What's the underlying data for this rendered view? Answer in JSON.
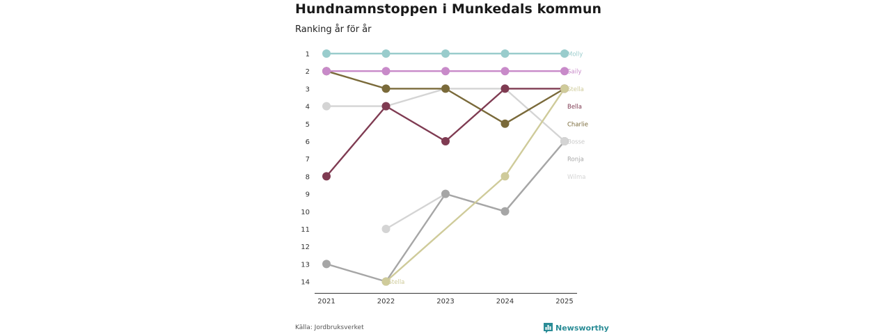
{
  "title": "Hundnamnstoppen i Munkedals kommun",
  "subtitle": "Ranking år för år",
  "footer": {
    "source": "Källa: Jordbruksverket",
    "brand": "Newsworthy"
  },
  "chart_data": {
    "type": "line",
    "subtype": "bump",
    "title": "Hundnamnstoppen i Munkedals kommun",
    "subtitle": "Ranking år för år",
    "x": [
      "2021",
      "2022",
      "2023",
      "2024",
      "2025"
    ],
    "y_ticks": [
      "1",
      "2",
      "3",
      "4",
      "5",
      "6",
      "7",
      "8",
      "9",
      "10",
      "11",
      "12",
      "13",
      "14"
    ],
    "ylim": [
      1,
      14
    ],
    "y_inverted": true,
    "series": [
      {
        "name": "Wilma",
        "color": "#d4d4d4",
        "values": [
          null,
          11,
          9,
          10,
          6
        ]
      },
      {
        "name": "Ronja",
        "color": "#a6a6a6",
        "values": [
          13,
          14,
          9,
          10,
          6
        ]
      },
      {
        "name": "Bosse",
        "color": "#d4d4d4",
        "values": [
          4,
          4,
          3,
          3,
          6
        ]
      },
      {
        "name": "Charlie",
        "color": "#7a6a3a",
        "values": [
          2,
          3,
          3,
          5,
          3
        ]
      },
      {
        "name": "Bella",
        "color": "#7f3b52",
        "values": [
          8,
          4,
          6,
          3,
          3
        ]
      },
      {
        "name": "Stella",
        "color": "#cfcb9a",
        "values": [
          null,
          14,
          null,
          8,
          3
        ]
      },
      {
        "name": "Saily",
        "color": "#c88ac9",
        "values": [
          2,
          2,
          2,
          2,
          2
        ]
      },
      {
        "name": "Molly",
        "color": "#99cccc",
        "values": [
          1,
          1,
          1,
          1,
          1
        ]
      }
    ],
    "end_labels": [
      {
        "name": "Molly",
        "rank": 1,
        "color": "#99cccc"
      },
      {
        "name": "Saily",
        "rank": 2,
        "color": "#c88ac9"
      },
      {
        "name": "Stella",
        "rank": 3,
        "color": "#cfcb9a"
      },
      {
        "name": "Bella",
        "rank": 4,
        "color": "#7f3b52"
      },
      {
        "name": "Charlie",
        "rank": 5,
        "color": "#7a6a3a"
      },
      {
        "name": "Bosse",
        "rank": 6,
        "color": "#c9c9c9"
      },
      {
        "name": "Ronja",
        "rank": 7,
        "color": "#a6a6a6"
      },
      {
        "name": "Wilma",
        "rank": 8,
        "color": "#d4d4d4"
      }
    ],
    "annotations": [
      {
        "text": "Stella",
        "x": "2022",
        "rank": 14,
        "color": "#cfcb9a"
      }
    ]
  }
}
